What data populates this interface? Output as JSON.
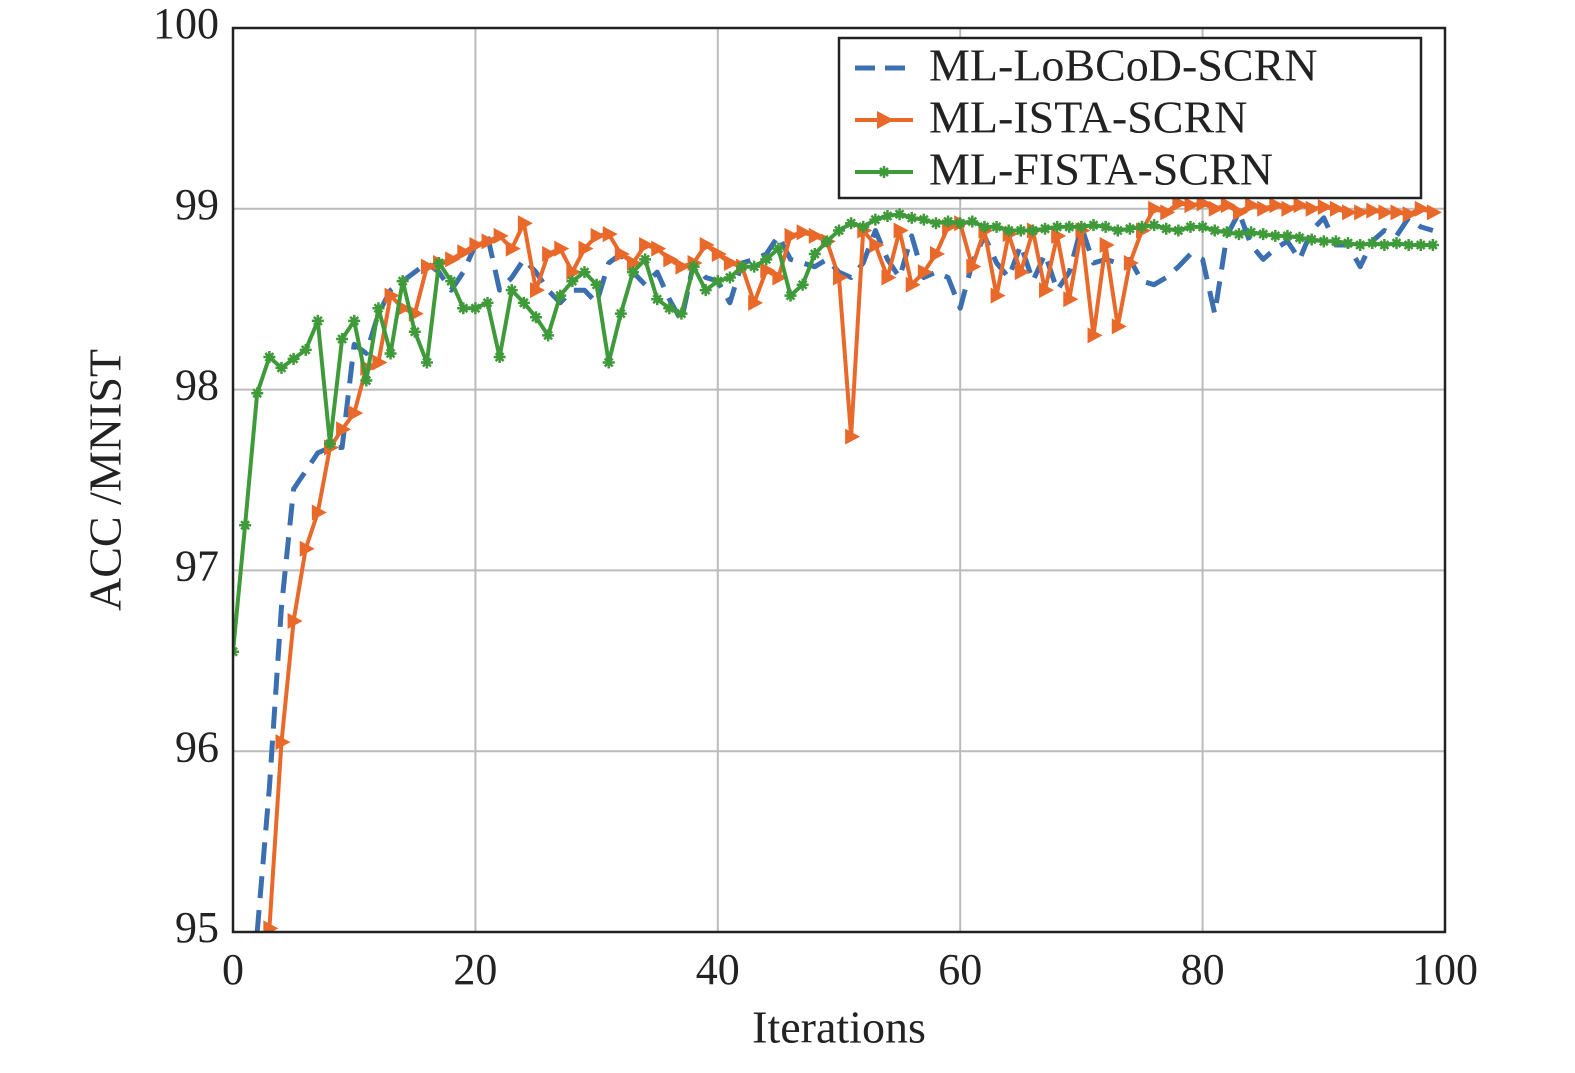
{
  "chart_data": {
    "type": "line",
    "xlabel": "Iterations",
    "ylabel": "ACC /MNIST",
    "x": [
      0,
      1,
      2,
      3,
      4,
      5,
      6,
      7,
      8,
      9,
      10,
      11,
      12,
      13,
      14,
      15,
      16,
      17,
      18,
      19,
      20,
      21,
      22,
      23,
      24,
      25,
      26,
      27,
      28,
      29,
      30,
      31,
      32,
      33,
      34,
      35,
      36,
      37,
      38,
      39,
      40,
      41,
      42,
      43,
      44,
      45,
      46,
      47,
      48,
      49,
      50,
      51,
      52,
      53,
      54,
      55,
      56,
      57,
      58,
      59,
      60,
      61,
      62,
      63,
      64,
      65,
      66,
      67,
      68,
      69,
      70,
      71,
      72,
      73,
      74,
      75,
      76,
      77,
      78,
      79,
      80,
      81,
      82,
      83,
      84,
      85,
      86,
      87,
      88,
      89,
      90,
      91,
      92,
      93,
      94,
      95,
      96,
      97,
      98,
      99
    ],
    "series": [
      {
        "name": "ML-LoBCoD-SCRN",
        "color": "#3b6fb0",
        "values": [
          null,
          null,
          95.0,
          95.8,
          96.8,
          97.45,
          97.55,
          97.65,
          97.68,
          97.68,
          98.25,
          98.2,
          98.42,
          98.55,
          98.6,
          98.65,
          98.7,
          98.65,
          98.55,
          98.65,
          98.8,
          98.85,
          98.55,
          98.62,
          98.72,
          98.65,
          98.55,
          98.48,
          98.55,
          98.55,
          98.48,
          98.7,
          98.75,
          98.65,
          98.58,
          98.65,
          98.5,
          98.38,
          98.7,
          98.62,
          98.6,
          98.48,
          98.7,
          98.72,
          98.75,
          98.85,
          98.72,
          98.7,
          98.68,
          98.72,
          98.65,
          98.62,
          98.7,
          98.88,
          98.72,
          98.62,
          98.85,
          98.62,
          98.65,
          98.62,
          98.45,
          98.7,
          98.85,
          98.7,
          98.62,
          98.8,
          98.6,
          98.75,
          98.55,
          98.65,
          98.9,
          98.7,
          98.72,
          98.7,
          98.72,
          98.6,
          98.58,
          98.62,
          98.68,
          98.75,
          98.72,
          98.42,
          98.85,
          98.98,
          98.8,
          98.72,
          98.78,
          98.82,
          98.72,
          98.88,
          98.95,
          98.8,
          98.8,
          98.68,
          98.82,
          98.88,
          98.85,
          98.95,
          98.9,
          98.88
        ]
      },
      {
        "name": "ML-ISTA-SCRN",
        "color": "#e8692a",
        "values": [
          null,
          null,
          null,
          95.02,
          96.05,
          96.72,
          97.12,
          97.32,
          97.68,
          97.78,
          97.87,
          98.12,
          98.15,
          98.52,
          98.45,
          98.42,
          98.68,
          98.7,
          98.72,
          98.76,
          98.8,
          98.82,
          98.85,
          98.78,
          98.92,
          98.55,
          98.75,
          98.78,
          98.65,
          98.78,
          98.85,
          98.86,
          98.75,
          98.7,
          98.8,
          98.78,
          98.72,
          98.68,
          98.7,
          98.8,
          98.75,
          98.7,
          98.68,
          98.48,
          98.66,
          98.62,
          98.85,
          98.87,
          98.85,
          98.82,
          98.62,
          97.74,
          98.88,
          98.8,
          98.62,
          98.88,
          98.58,
          98.65,
          98.75,
          98.9,
          98.92,
          98.68,
          98.88,
          98.52,
          98.86,
          98.65,
          98.88,
          98.55,
          98.85,
          98.5,
          98.88,
          98.3,
          98.8,
          98.35,
          98.7,
          98.88,
          99.0,
          98.98,
          99.03,
          99.02,
          99.03,
          99.0,
          99.02,
          98.98,
          99.02,
          99.0,
          99.02,
          99.0,
          99.02,
          99.0,
          99.01,
          99.0,
          98.98,
          98.98,
          98.99,
          98.98,
          98.98,
          98.97,
          99.0,
          98.98
        ]
      },
      {
        "name": "ML-FISTA-SCRN",
        "color": "#3f9a3a",
        "values": [
          96.55,
          97.25,
          97.98,
          98.18,
          98.12,
          98.17,
          98.22,
          98.38,
          97.7,
          98.28,
          98.38,
          98.05,
          98.45,
          98.2,
          98.6,
          98.32,
          98.15,
          98.7,
          98.6,
          98.45,
          98.45,
          98.48,
          98.18,
          98.55,
          98.48,
          98.4,
          98.3,
          98.52,
          98.6,
          98.65,
          98.58,
          98.15,
          98.42,
          98.65,
          98.72,
          98.5,
          98.45,
          98.42,
          98.68,
          98.55,
          98.6,
          98.62,
          98.68,
          98.68,
          98.72,
          98.78,
          98.52,
          98.58,
          98.75,
          98.82,
          98.88,
          98.92,
          98.9,
          98.94,
          98.96,
          98.97,
          98.95,
          98.94,
          98.92,
          98.93,
          98.92,
          98.93,
          98.9,
          98.9,
          98.88,
          98.88,
          98.88,
          98.89,
          98.9,
          98.9,
          98.9,
          98.91,
          98.9,
          98.88,
          98.89,
          98.9,
          98.91,
          98.89,
          98.88,
          98.9,
          98.9,
          98.88,
          98.87,
          98.86,
          98.87,
          98.86,
          98.85,
          98.85,
          98.84,
          98.83,
          98.82,
          98.82,
          98.81,
          98.8,
          98.81,
          98.8,
          98.81,
          98.8,
          98.8,
          98.8
        ]
      }
    ],
    "xlim": [
      0,
      100
    ],
    "xticks": [
      0,
      20,
      40,
      60,
      80,
      100
    ],
    "ylim": [
      95,
      100
    ],
    "yticks": [
      95,
      96,
      97,
      98,
      99,
      100
    ],
    "grid": true,
    "legend": "upper right"
  }
}
